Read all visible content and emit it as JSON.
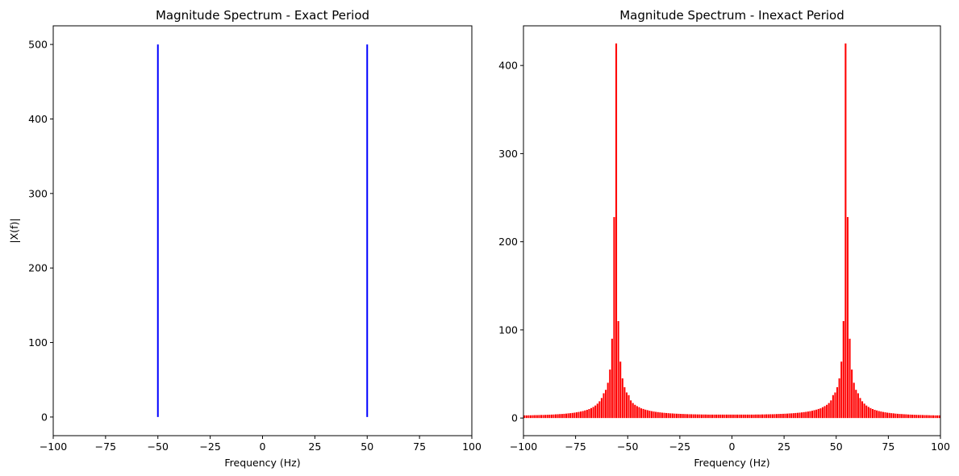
{
  "chart_data": [
    {
      "type": "bar",
      "title": "Magnitude Spectrum - Exact Period",
      "xlabel": "Frequency (Hz)",
      "ylabel": "|X(f)|",
      "xlim": [
        -100,
        100
      ],
      "ylim": [
        -25,
        525
      ],
      "xticks": [
        -100,
        -75,
        -50,
        -25,
        0,
        25,
        50,
        75,
        100
      ],
      "yticks": [
        0,
        100,
        200,
        300,
        400,
        500
      ],
      "tick_labels_x": [
        "−100",
        "−75",
        "−50",
        "−25",
        "0",
        "25",
        "50",
        "75",
        "100"
      ],
      "tick_labels_y": [
        "0",
        "100",
        "200",
        "300",
        "400",
        "500"
      ],
      "color": "#0000ff",
      "x": [
        -50,
        50
      ],
      "values": [
        500,
        500
      ]
    },
    {
      "type": "bar",
      "title": "Magnitude Spectrum - Inexact Period",
      "xlabel": "Frequency (Hz)",
      "ylabel": "",
      "xlim": [
        -100,
        100
      ],
      "ylim": [
        -20,
        445
      ],
      "xticks": [
        -100,
        -75,
        -50,
        -25,
        0,
        25,
        50,
        75,
        100
      ],
      "yticks": [
        0,
        100,
        200,
        300,
        400
      ],
      "tick_labels_x": [
        "−100",
        "−75",
        "−50",
        "−25",
        "0",
        "25",
        "50",
        "75",
        "100"
      ],
      "tick_labels_y": [
        "0",
        "100",
        "200",
        "300",
        "400"
      ],
      "color": "#ff0000",
      "bin_width_hz": 1,
      "x": [
        -100,
        -99,
        -98,
        -97,
        -96,
        -95,
        -94,
        -93,
        -92,
        -91,
        -90,
        -89,
        -88,
        -87,
        -86,
        -85,
        -84,
        -83,
        -82,
        -81,
        -80,
        -79,
        -78,
        -77,
        -76,
        -75,
        -74,
        -73,
        -72,
        -71,
        -70,
        -69,
        -68,
        -67,
        -66,
        -65,
        -64,
        -63,
        -62,
        -61,
        -60,
        -59,
        -58,
        -57,
        -56,
        -55,
        -54,
        -53,
        -52,
        -51,
        -50,
        -49,
        -48,
        -47,
        -46,
        -45,
        -44,
        -43,
        -42,
        -41,
        -40,
        -39,
        -38,
        -37,
        -36,
        -35,
        -34,
        -33,
        -32,
        -31,
        -30,
        -29,
        -28,
        -27,
        -26,
        -25,
        -24,
        -23,
        -22,
        -21,
        -20,
        -19,
        -18,
        -17,
        -16,
        -15,
        -14,
        -13,
        -12,
        -11,
        -10,
        -9,
        -8,
        -7,
        -6,
        -5,
        -4,
        -3,
        -2,
        -1,
        0,
        1,
        2,
        3,
        4,
        5,
        6,
        7,
        8,
        9,
        10,
        11,
        12,
        13,
        14,
        15,
        16,
        17,
        18,
        19,
        20,
        21,
        22,
        23,
        24,
        25,
        26,
        27,
        28,
        29,
        30,
        31,
        32,
        33,
        34,
        35,
        36,
        37,
        38,
        39,
        40,
        41,
        42,
        43,
        44,
        45,
        46,
        47,
        48,
        49,
        50,
        51,
        52,
        53,
        54,
        55,
        56,
        57,
        58,
        59,
        60,
        61,
        62,
        63,
        64,
        65,
        66,
        67,
        68,
        69,
        70,
        71,
        72,
        73,
        74,
        75,
        76,
        77,
        78,
        79,
        80,
        81,
        82,
        83,
        84,
        85,
        86,
        87,
        88,
        89,
        90,
        91,
        92,
        93,
        94,
        95,
        96,
        97,
        98,
        99
      ],
      "values": [
        3.0,
        3.0,
        3.1,
        3.1,
        3.2,
        3.3,
        3.3,
        3.4,
        3.5,
        3.5,
        3.6,
        3.7,
        3.8,
        3.9,
        4.0,
        4.2,
        4.3,
        4.5,
        4.6,
        4.8,
        5.0,
        5.3,
        5.5,
        5.8,
        6.1,
        6.5,
        6.9,
        7.4,
        7.9,
        8.6,
        9.3,
        10.2,
        11.3,
        12.6,
        14.2,
        16.3,
        19.0,
        22.7,
        28.1,
        32.0,
        40.0,
        55.0,
        90.0,
        228.0,
        425.0,
        110.0,
        64.0,
        45.0,
        35.0,
        29.0,
        26.0,
        20.0,
        17.0,
        15.0,
        13.5,
        12.3,
        11.0,
        10.3,
        9.5,
        8.9,
        8.3,
        7.8,
        7.4,
        7.0,
        6.7,
        6.4,
        6.1,
        5.9,
        5.7,
        5.5,
        5.3,
        5.2,
        5.0,
        4.9,
        4.8,
        4.7,
        4.6,
        4.5,
        4.4,
        4.3,
        4.3,
        4.2,
        4.2,
        4.1,
        4.1,
        4.0,
        4.0,
        4.0,
        3.9,
        3.9,
        3.9,
        3.9,
        3.9,
        3.9,
        3.9,
        3.9,
        3.9,
        3.9,
        3.9,
        3.9,
        3.9,
        3.9,
        3.9,
        3.9,
        3.9,
        3.9,
        3.9,
        3.9,
        3.9,
        3.9,
        3.9,
        4.0,
        4.0,
        4.0,
        4.1,
        4.1,
        4.2,
        4.2,
        4.3,
        4.3,
        4.4,
        4.5,
        4.6,
        4.7,
        4.8,
        4.9,
        5.0,
        5.2,
        5.3,
        5.5,
        5.7,
        5.9,
        6.1,
        6.4,
        6.7,
        7.0,
        7.4,
        7.8,
        8.3,
        8.9,
        9.5,
        10.3,
        11.0,
        12.3,
        13.5,
        15.0,
        17.0,
        20.0,
        26.0,
        29.0,
        35.0,
        45.0,
        64.0,
        110.0,
        425.0,
        228.0,
        90.0,
        55.0,
        40.0,
        32.0,
        28.1,
        22.7,
        19.0,
        16.3,
        14.2,
        12.6,
        11.3,
        10.2,
        9.3,
        8.6,
        7.9,
        7.4,
        6.9,
        6.5,
        6.1,
        5.8,
        5.5,
        5.3,
        5.0,
        4.8,
        4.6,
        4.5,
        4.3,
        4.2,
        4.0,
        3.9,
        3.8,
        3.7,
        3.6,
        3.5,
        3.5,
        3.4,
        3.3,
        3.3,
        3.2,
        3.1,
        3.1,
        3.0,
        3.0,
        3.0
      ]
    }
  ]
}
